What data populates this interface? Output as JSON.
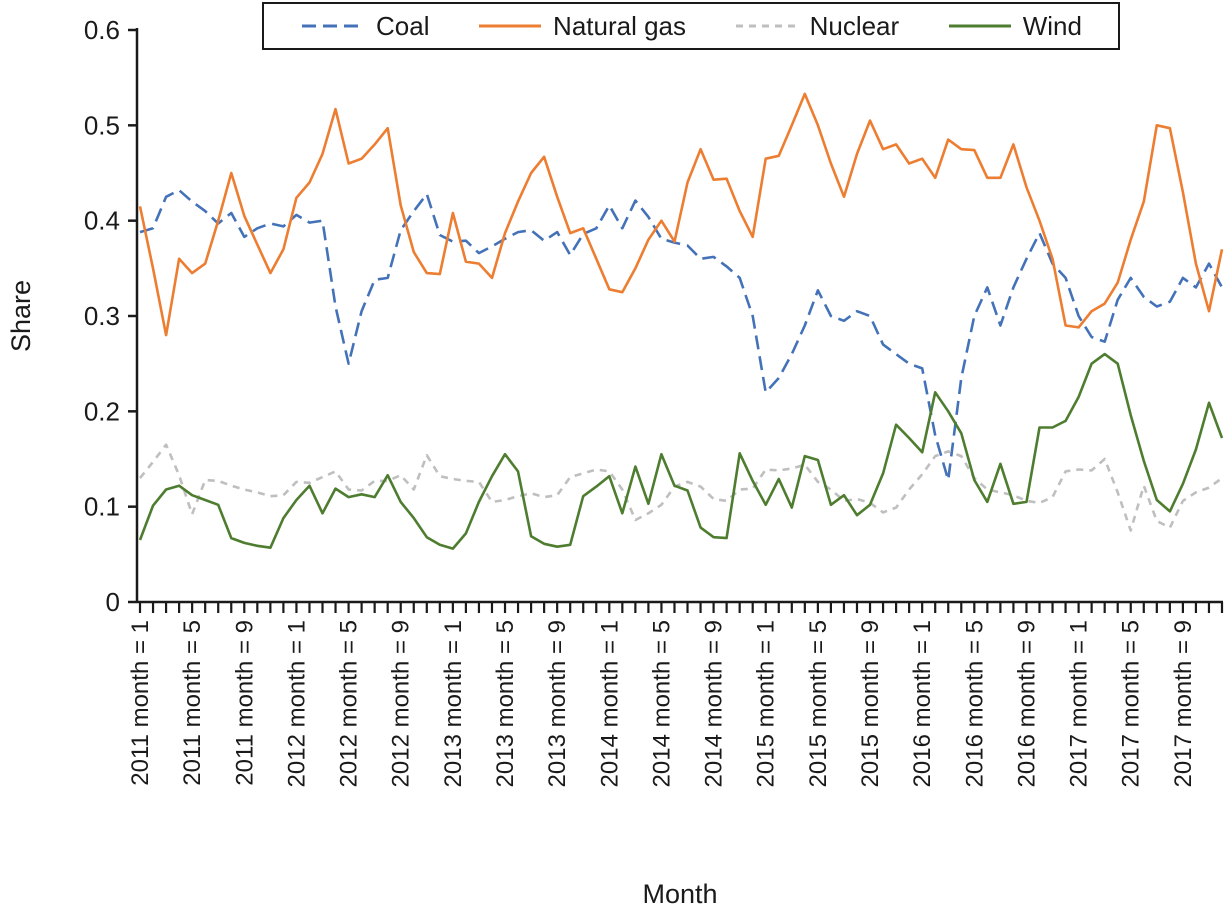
{
  "chart_data": {
    "type": "line",
    "title": "",
    "xlabel": "Month",
    "ylabel": "Share",
    "ylim": [
      0,
      0.6
    ],
    "ytick_labels": [
      "0",
      "0.1",
      "0.2",
      "0.3",
      "0.4",
      "0.5",
      "0.6"
    ],
    "ytick_values": [
      0,
      0.1,
      0.2,
      0.3,
      0.4,
      0.5,
      0.6
    ],
    "x_months_total": 84,
    "xtick_every_month": true,
    "xtick_label_positions": [
      1,
      5,
      9,
      13,
      17,
      21,
      25,
      29,
      33,
      37,
      41,
      45,
      49,
      53,
      57,
      61,
      65,
      69,
      73,
      77,
      81
    ],
    "xtick_labels": [
      "2011 month = 1",
      "2011 month = 5",
      "2011 month = 9",
      "2012 month = 1",
      "2012 month = 5",
      "2012 month = 9",
      "2013 month = 1",
      "2013 month = 5",
      "2013 month = 9",
      "2014 month = 1",
      "2014 month = 5",
      "2014 month = 9",
      "2015 month = 1",
      "2015 month = 5",
      "2015 month = 9",
      "2016 month = 1",
      "2016 month = 5",
      "2016 month = 9",
      "2017 month = 1",
      "2017 month = 5",
      "2017 month = 9"
    ],
    "legend_position": "top",
    "grid": false,
    "axis_color": "#1a1a1a",
    "series": [
      {
        "name": "Coal",
        "color": "#4472b8",
        "line_style": "dashed-long",
        "values": [
          0.388,
          0.392,
          0.425,
          0.432,
          0.42,
          0.41,
          0.397,
          0.408,
          0.383,
          0.392,
          0.397,
          0.394,
          0.406,
          0.398,
          0.4,
          0.31,
          0.25,
          0.305,
          0.338,
          0.34,
          0.39,
          0.41,
          0.428,
          0.385,
          0.378,
          0.379,
          0.366,
          0.373,
          0.381,
          0.388,
          0.39,
          0.379,
          0.388,
          0.364,
          0.386,
          0.392,
          0.416,
          0.392,
          0.421,
          0.404,
          0.381,
          0.377,
          0.374,
          0.36,
          0.362,
          0.352,
          0.34,
          0.3,
          0.22,
          0.235,
          0.26,
          0.29,
          0.327,
          0.3,
          0.295,
          0.305,
          0.3,
          0.27,
          0.26,
          0.25,
          0.245,
          0.175,
          0.128,
          0.235,
          0.3,
          0.33,
          0.29,
          0.33,
          0.36,
          0.387,
          0.355,
          0.34,
          0.3,
          0.278,
          0.273,
          0.317,
          0.34,
          0.32,
          0.31,
          0.315,
          0.34,
          0.33,
          0.355,
          0.33
        ]
      },
      {
        "name": "Natural gas",
        "color": "#ed7d31",
        "line_style": "solid",
        "values": [
          0.415,
          0.35,
          0.28,
          0.36,
          0.345,
          0.355,
          0.4,
          0.45,
          0.405,
          0.375,
          0.345,
          0.37,
          0.424,
          0.44,
          0.47,
          0.517,
          0.46,
          0.465,
          0.48,
          0.497,
          0.416,
          0.367,
          0.345,
          0.344,
          0.408,
          0.357,
          0.355,
          0.34,
          0.387,
          0.42,
          0.45,
          0.467,
          0.425,
          0.387,
          0.392,
          0.36,
          0.328,
          0.325,
          0.35,
          0.38,
          0.4,
          0.378,
          0.44,
          0.475,
          0.443,
          0.444,
          0.41,
          0.383,
          0.465,
          0.468,
          0.5,
          0.533,
          0.5,
          0.46,
          0.425,
          0.47,
          0.505,
          0.475,
          0.48,
          0.46,
          0.465,
          0.445,
          0.485,
          0.475,
          0.474,
          0.445,
          0.445,
          0.48,
          0.435,
          0.4,
          0.36,
          0.29,
          0.288,
          0.305,
          0.313,
          0.335,
          0.38,
          0.42,
          0.5,
          0.497,
          0.43,
          0.355,
          0.305,
          0.37
        ]
      },
      {
        "name": "Nuclear",
        "color": "#bfbfbf",
        "line_style": "dashed-short",
        "values": [
          0.13,
          0.147,
          0.165,
          0.133,
          0.092,
          0.128,
          0.127,
          0.122,
          0.118,
          0.115,
          0.111,
          0.112,
          0.126,
          0.125,
          0.131,
          0.137,
          0.118,
          0.117,
          0.127,
          0.127,
          0.133,
          0.118,
          0.154,
          0.132,
          0.129,
          0.127,
          0.126,
          0.105,
          0.107,
          0.111,
          0.114,
          0.11,
          0.112,
          0.131,
          0.135,
          0.139,
          0.137,
          0.118,
          0.086,
          0.093,
          0.102,
          0.121,
          0.126,
          0.121,
          0.108,
          0.106,
          0.118,
          0.119,
          0.139,
          0.138,
          0.14,
          0.144,
          0.126,
          0.118,
          0.106,
          0.108,
          0.104,
          0.094,
          0.099,
          0.118,
          0.134,
          0.153,
          0.158,
          0.153,
          0.13,
          0.118,
          0.115,
          0.112,
          0.106,
          0.104,
          0.11,
          0.137,
          0.139,
          0.138,
          0.15,
          0.115,
          0.075,
          0.122,
          0.085,
          0.078,
          0.106,
          0.115,
          0.12,
          0.13
        ]
      },
      {
        "name": "Wind",
        "color": "#4e7d30",
        "line_style": "solid",
        "values": [
          0.065,
          0.101,
          0.118,
          0.122,
          0.112,
          0.107,
          0.102,
          0.067,
          0.062,
          0.059,
          0.057,
          0.088,
          0.107,
          0.122,
          0.093,
          0.119,
          0.11,
          0.113,
          0.11,
          0.133,
          0.105,
          0.088,
          0.068,
          0.06,
          0.056,
          0.072,
          0.105,
          0.132,
          0.155,
          0.137,
          0.069,
          0.061,
          0.058,
          0.06,
          0.111,
          0.121,
          0.132,
          0.093,
          0.142,
          0.103,
          0.155,
          0.122,
          0.117,
          0.078,
          0.068,
          0.067,
          0.156,
          0.127,
          0.102,
          0.129,
          0.099,
          0.153,
          0.149,
          0.102,
          0.112,
          0.091,
          0.102,
          0.135,
          0.186,
          0.172,
          0.157,
          0.22,
          0.2,
          0.177,
          0.128,
          0.105,
          0.145,
          0.103,
          0.105,
          0.183,
          0.183,
          0.19,
          0.215,
          0.25,
          0.26,
          0.25,
          0.196,
          0.148,
          0.107,
          0.095,
          0.124,
          0.16,
          0.209,
          0.172
        ]
      }
    ]
  }
}
